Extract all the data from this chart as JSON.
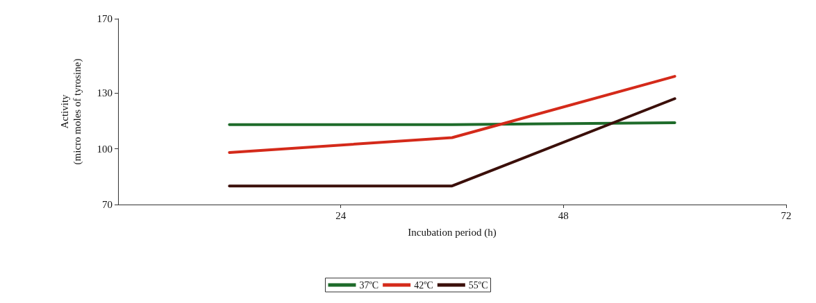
{
  "chart_data": {
    "type": "line",
    "xlabel": "Incubation period (h)",
    "ylabel": "Activity\n(micro moles of tyrosine)",
    "x": [
      12,
      36,
      60
    ],
    "series": [
      {
        "name": "37ºC",
        "color": "#1e6b2a",
        "values": [
          113,
          113,
          114
        ]
      },
      {
        "name": "42ºC",
        "color": "#d42a1a",
        "values": [
          98,
          106,
          139
        ]
      },
      {
        "name": "55ºC",
        "color": "#3b0f0a",
        "values": [
          80,
          80,
          127
        ]
      }
    ],
    "xlim": [
      0,
      72
    ],
    "xticks": [
      24,
      48,
      72
    ],
    "ylim": [
      70,
      170
    ],
    "yticks": [
      70,
      100,
      130,
      170
    ],
    "grid": false,
    "legend": "bottom",
    "marker": "none",
    "line_style": "solid"
  }
}
